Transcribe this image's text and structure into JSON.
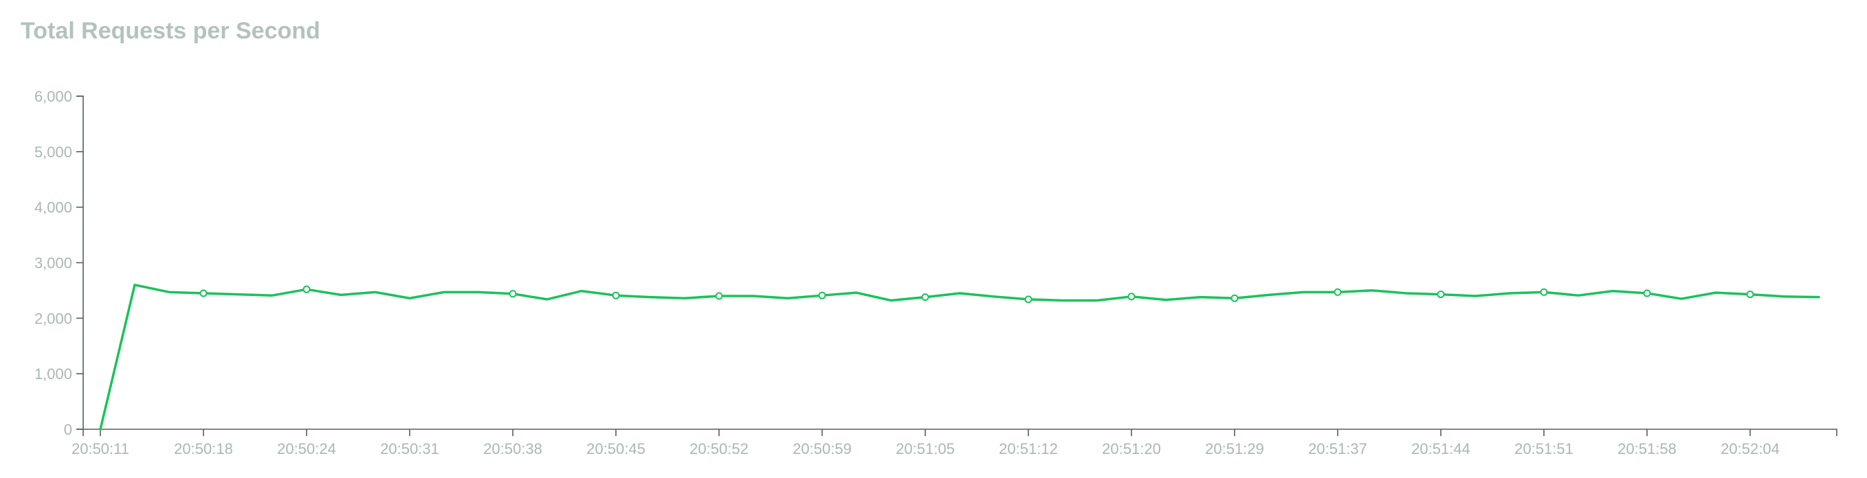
{
  "chart_data": {
    "type": "line",
    "title": "Total Requests per Second",
    "xlabel": "",
    "ylabel": "",
    "ylim": [
      0,
      6000
    ],
    "y_ticks": [
      0,
      1000,
      2000,
      3000,
      4000,
      5000,
      6000
    ],
    "y_tick_labels": [
      "0",
      "1,000",
      "2,000",
      "3,000",
      "4,000",
      "5,000",
      "6,000"
    ],
    "x_tick_labels": [
      "20:50:11",
      "20:50:18",
      "20:50:24",
      "20:50:31",
      "20:50:38",
      "20:50:45",
      "20:50:52",
      "20:50:59",
      "20:51:05",
      "20:51:12",
      "20:51:20",
      "20:51:29",
      "20:51:37",
      "20:51:44",
      "20:51:51",
      "20:51:58",
      "20:52:04"
    ],
    "grid": false,
    "legend": "none",
    "color": "#19c35a",
    "series": [
      {
        "values": [
          0,
          2600,
          2470,
          2450,
          2430,
          2410,
          2520,
          2420,
          2470,
          2360,
          2470,
          2470,
          2440,
          2340,
          2490,
          2410,
          2380,
          2360,
          2400,
          2400,
          2360,
          2410,
          2460,
          2320,
          2380,
          2450,
          2390,
          2340,
          2320,
          2320,
          2390,
          2330,
          2380,
          2360,
          2420,
          2470,
          2470,
          2500,
          2450,
          2430,
          2400,
          2450,
          2470,
          2410,
          2490,
          2450,
          2350,
          2460,
          2430,
          2390,
          2380
        ],
        "markers": [
          3,
          6,
          12,
          15,
          18,
          21,
          24,
          27,
          30,
          33,
          36,
          39,
          42,
          45,
          48
        ]
      }
    ]
  }
}
